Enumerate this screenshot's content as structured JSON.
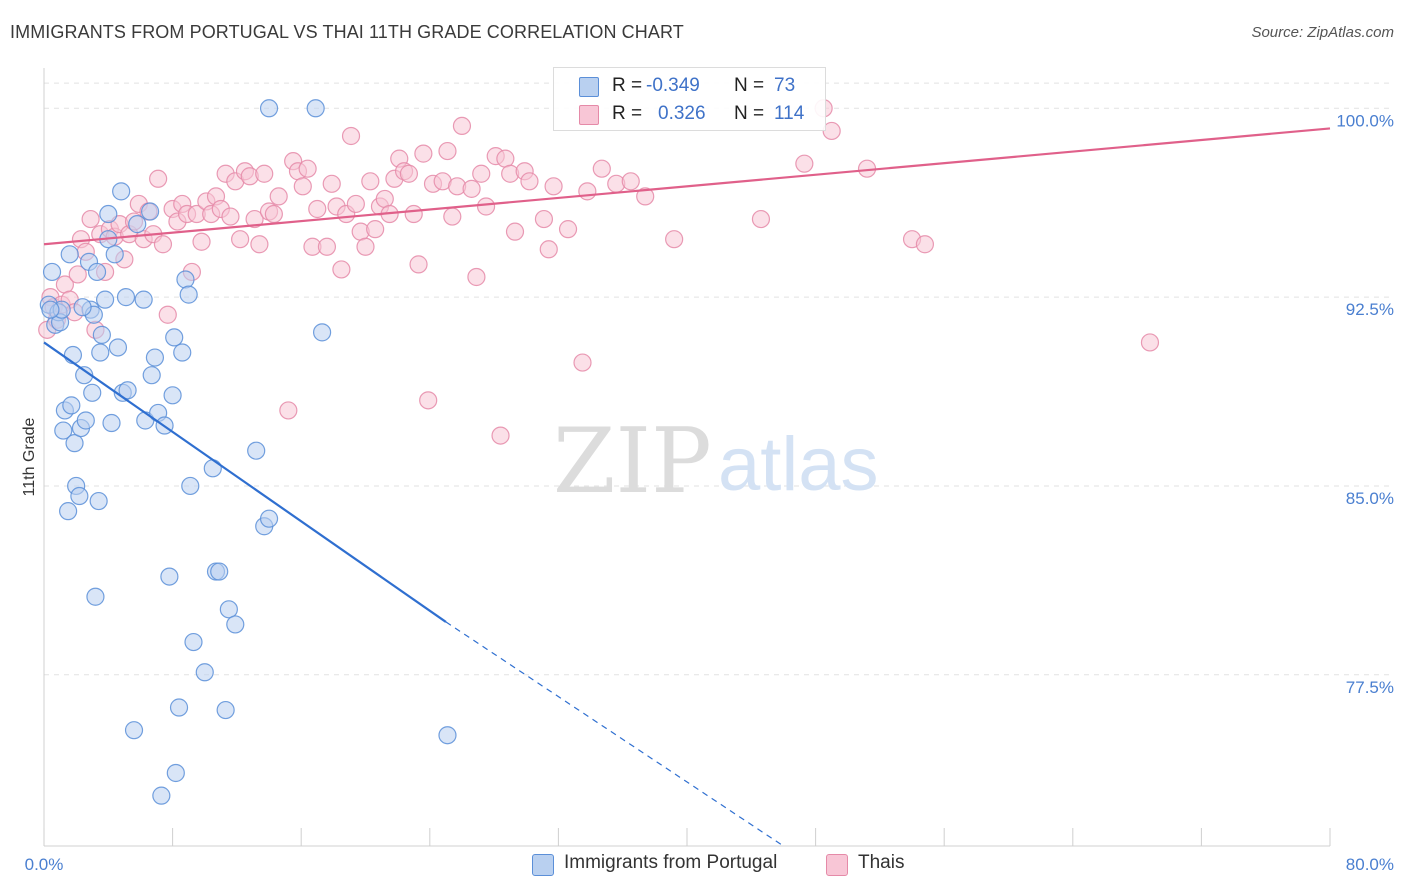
{
  "header": {
    "title": "IMMIGRANTS FROM PORTUGAL VS THAI 11TH GRADE CORRELATION CHART",
    "source": "Source: ZipAtlas.com"
  },
  "watermark": {
    "zip": "ZIP",
    "atlas": "atlas"
  },
  "legend_top": {
    "r_label": "R =",
    "n_label": "N =",
    "series": [
      {
        "r": "-0.349",
        "n": "73"
      },
      {
        "r": "0.326",
        "n": "114"
      }
    ]
  },
  "legend_bottom": [
    "Immigrants from Portugal",
    "Thais"
  ],
  "colors": {
    "portugal_fill": "#b9d0f0",
    "portugal_stroke": "#5b8fd8",
    "portugal_line": "#2f6fd0",
    "thai_fill": "#f8c6d6",
    "thai_stroke": "#e58aa8",
    "thai_line": "#e0608a",
    "tick_text": "#4a7fd0"
  },
  "chart_data": {
    "type": "scatter",
    "title": "IMMIGRANTS FROM PORTUGAL VS THAI 11TH GRADE CORRELATION CHART",
    "xlabel": "",
    "ylabel": "11th Grade",
    "xlim": [
      0,
      80
    ],
    "ylim": [
      70.7,
      101.6
    ],
    "x_tick_labels": [
      "0.0%",
      "80.0%"
    ],
    "y_ticks": [
      77.5,
      85.0,
      92.5,
      100.0
    ],
    "y_tick_labels": [
      "77.5%",
      "85.0%",
      "92.5%",
      "100.0%"
    ],
    "grid": true,
    "legend_placement": "bottom-center",
    "series": [
      {
        "name": "Immigrants from Portugal",
        "r": -0.349,
        "n": 73,
        "trend": {
          "x0": 0.0,
          "y0": 90.7,
          "x1": 25.0,
          "y1": 79.6,
          "dashed_to_x": 46.0,
          "dashed_to_y": 70.7
        },
        "points": [
          [
            0.3,
            92.2
          ],
          [
            0.5,
            93.5
          ],
          [
            0.7,
            91.4
          ],
          [
            0.9,
            91.9
          ],
          [
            1.0,
            91.5
          ],
          [
            1.1,
            92.0
          ],
          [
            1.2,
            87.2
          ],
          [
            1.3,
            88.0
          ],
          [
            1.5,
            84.0
          ],
          [
            1.6,
            94.2
          ],
          [
            1.7,
            88.2
          ],
          [
            1.8,
            90.2
          ],
          [
            1.9,
            86.7
          ],
          [
            2.0,
            85.0
          ],
          [
            2.2,
            84.6
          ],
          [
            2.3,
            87.3
          ],
          [
            2.5,
            89.4
          ],
          [
            2.6,
            87.6
          ],
          [
            2.8,
            93.9
          ],
          [
            2.9,
            92.0
          ],
          [
            3.1,
            91.8
          ],
          [
            3.2,
            80.6
          ],
          [
            3.3,
            93.5
          ],
          [
            3.4,
            84.4
          ],
          [
            3.5,
            90.3
          ],
          [
            3.6,
            91.0
          ],
          [
            3.8,
            92.4
          ],
          [
            4.0,
            94.8
          ],
          [
            4.0,
            95.8
          ],
          [
            4.2,
            87.5
          ],
          [
            4.4,
            94.2
          ],
          [
            4.6,
            90.5
          ],
          [
            4.8,
            96.7
          ],
          [
            4.9,
            88.7
          ],
          [
            5.1,
            92.5
          ],
          [
            5.2,
            88.8
          ],
          [
            5.6,
            75.3
          ],
          [
            5.8,
            95.4
          ],
          [
            6.2,
            92.4
          ],
          [
            6.3,
            87.6
          ],
          [
            6.6,
            95.9
          ],
          [
            6.7,
            89.4
          ],
          [
            6.9,
            90.1
          ],
          [
            7.1,
            87.9
          ],
          [
            7.3,
            72.7
          ],
          [
            7.5,
            87.4
          ],
          [
            7.8,
            81.4
          ],
          [
            8.0,
            88.6
          ],
          [
            8.1,
            90.9
          ],
          [
            8.2,
            73.6
          ],
          [
            8.4,
            76.2
          ],
          [
            8.6,
            90.3
          ],
          [
            8.8,
            93.2
          ],
          [
            9.0,
            92.6
          ],
          [
            9.1,
            85.0
          ],
          [
            9.3,
            78.8
          ],
          [
            10.0,
            77.6
          ],
          [
            10.5,
            85.7
          ],
          [
            10.7,
            81.6
          ],
          [
            10.9,
            81.6
          ],
          [
            11.3,
            76.1
          ],
          [
            11.5,
            80.1
          ],
          [
            11.9,
            79.5
          ],
          [
            13.2,
            86.4
          ],
          [
            13.7,
            83.4
          ],
          [
            14.0,
            83.7
          ],
          [
            14.0,
            100.0
          ],
          [
            16.9,
            100.0
          ],
          [
            17.3,
            91.1
          ],
          [
            25.1,
            75.1
          ],
          [
            0.4,
            92.0
          ],
          [
            2.4,
            92.1
          ],
          [
            3.0,
            88.7
          ]
        ]
      },
      {
        "name": "Thais",
        "r": 0.326,
        "n": 114,
        "trend": {
          "x0": 0.0,
          "y0": 94.6,
          "x1": 80.0,
          "y1": 99.2
        },
        "points": [
          [
            0.2,
            91.2
          ],
          [
            0.4,
            92.5
          ],
          [
            0.6,
            92.1
          ],
          [
            0.8,
            91.6
          ],
          [
            1.1,
            92.2
          ],
          [
            1.3,
            93.0
          ],
          [
            1.6,
            92.4
          ],
          [
            1.9,
            91.9
          ],
          [
            2.1,
            93.4
          ],
          [
            2.3,
            94.8
          ],
          [
            2.6,
            94.3
          ],
          [
            2.9,
            95.6
          ],
          [
            3.2,
            91.2
          ],
          [
            3.5,
            95.0
          ],
          [
            3.8,
            93.5
          ],
          [
            4.1,
            95.2
          ],
          [
            4.4,
            94.9
          ],
          [
            4.7,
            95.4
          ],
          [
            5.0,
            94.0
          ],
          [
            5.3,
            95.0
          ],
          [
            5.6,
            95.5
          ],
          [
            5.9,
            96.2
          ],
          [
            6.2,
            94.8
          ],
          [
            6.5,
            95.9
          ],
          [
            6.8,
            95.0
          ],
          [
            7.1,
            97.2
          ],
          [
            7.4,
            94.6
          ],
          [
            7.7,
            91.8
          ],
          [
            8.0,
            96.0
          ],
          [
            8.3,
            95.5
          ],
          [
            8.6,
            96.2
          ],
          [
            8.9,
            95.8
          ],
          [
            9.2,
            93.5
          ],
          [
            9.5,
            95.8
          ],
          [
            9.8,
            94.7
          ],
          [
            10.1,
            96.3
          ],
          [
            10.4,
            95.8
          ],
          [
            10.7,
            96.5
          ],
          [
            11.0,
            96.0
          ],
          [
            11.3,
            97.4
          ],
          [
            11.6,
            95.7
          ],
          [
            11.9,
            97.1
          ],
          [
            12.2,
            94.8
          ],
          [
            12.5,
            97.5
          ],
          [
            12.8,
            97.3
          ],
          [
            13.1,
            95.6
          ],
          [
            13.4,
            94.6
          ],
          [
            13.7,
            97.4
          ],
          [
            14.0,
            95.9
          ],
          [
            14.3,
            95.8
          ],
          [
            14.6,
            96.5
          ],
          [
            15.2,
            88.0
          ],
          [
            15.5,
            97.9
          ],
          [
            15.8,
            97.5
          ],
          [
            16.1,
            96.9
          ],
          [
            16.4,
            97.6
          ],
          [
            16.7,
            94.5
          ],
          [
            17.0,
            96.0
          ],
          [
            17.6,
            94.5
          ],
          [
            17.9,
            97.0
          ],
          [
            18.2,
            96.1
          ],
          [
            18.5,
            93.6
          ],
          [
            18.8,
            95.8
          ],
          [
            19.1,
            98.9
          ],
          [
            19.4,
            96.2
          ],
          [
            19.7,
            95.1
          ],
          [
            20.0,
            94.5
          ],
          [
            20.3,
            97.1
          ],
          [
            20.6,
            95.2
          ],
          [
            20.9,
            96.1
          ],
          [
            21.2,
            96.4
          ],
          [
            21.5,
            95.8
          ],
          [
            21.8,
            97.2
          ],
          [
            22.1,
            98.0
          ],
          [
            22.4,
            97.5
          ],
          [
            22.7,
            97.4
          ],
          [
            23.0,
            95.8
          ],
          [
            23.3,
            93.8
          ],
          [
            23.6,
            98.2
          ],
          [
            23.9,
            88.4
          ],
          [
            24.2,
            97.0
          ],
          [
            24.8,
            97.1
          ],
          [
            25.1,
            98.3
          ],
          [
            25.4,
            95.7
          ],
          [
            25.7,
            96.9
          ],
          [
            26.0,
            99.3
          ],
          [
            26.6,
            96.8
          ],
          [
            26.9,
            93.3
          ],
          [
            27.2,
            97.4
          ],
          [
            27.5,
            96.1
          ],
          [
            28.1,
            98.1
          ],
          [
            28.4,
            87.0
          ],
          [
            28.7,
            98.0
          ],
          [
            29.0,
            97.4
          ],
          [
            29.3,
            95.1
          ],
          [
            29.9,
            97.5
          ],
          [
            30.2,
            97.1
          ],
          [
            31.1,
            95.6
          ],
          [
            31.4,
            94.4
          ],
          [
            31.7,
            96.9
          ],
          [
            32.6,
            95.2
          ],
          [
            33.5,
            89.9
          ],
          [
            33.8,
            96.7
          ],
          [
            34.7,
            97.6
          ],
          [
            35.6,
            97.0
          ],
          [
            36.5,
            97.1
          ],
          [
            37.4,
            96.5
          ],
          [
            39.2,
            94.8
          ],
          [
            44.6,
            95.6
          ],
          [
            47.3,
            97.8
          ],
          [
            48.5,
            100.0
          ],
          [
            51.2,
            97.6
          ],
          [
            54.0,
            94.8
          ],
          [
            54.8,
            94.6
          ],
          [
            68.8,
            90.7
          ],
          [
            49.0,
            99.1
          ]
        ]
      }
    ]
  }
}
